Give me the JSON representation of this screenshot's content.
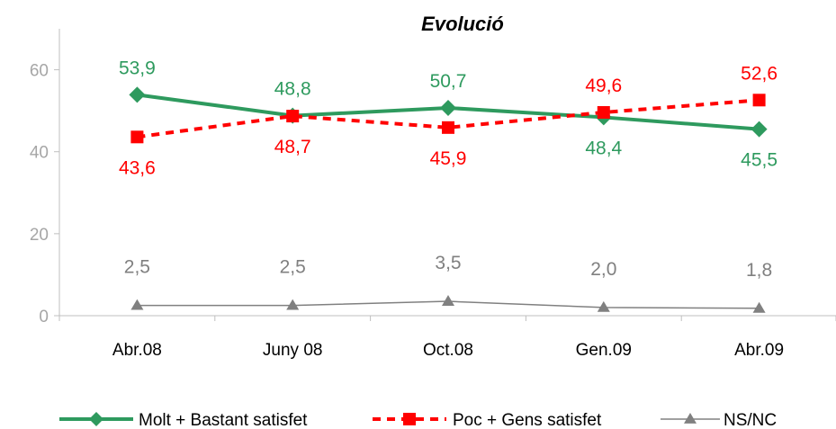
{
  "chart_data": {
    "type": "line",
    "title": "Evolució",
    "categories": [
      "Abr.08",
      "Juny 08",
      "Oct.08",
      "Gen.09",
      "Abr.09"
    ],
    "ylim": [
      0,
      70
    ],
    "yticks": [
      "0",
      "20",
      "40",
      "60"
    ],
    "yticks_values": [
      0,
      20,
      40,
      60
    ],
    "grid": false,
    "legend_position": "bottom",
    "series": [
      {
        "name": "Molt + Bastant satisfet",
        "values": [
          53.9,
          48.8,
          50.7,
          48.4,
          45.5
        ],
        "labels": [
          "53,9",
          "48,8",
          "50,7",
          "48,4",
          "45,5"
        ],
        "label_pos": [
          "above",
          "above",
          "above",
          "below",
          "below"
        ],
        "color": "#2e9a5e",
        "marker": "diamond",
        "line_style": "solid"
      },
      {
        "name": "Poc + Gens satisfet",
        "values": [
          43.6,
          48.7,
          45.9,
          49.6,
          52.6
        ],
        "labels": [
          "43,6",
          "48,7",
          "45,9",
          "49,6",
          "52,6"
        ],
        "label_pos": [
          "below",
          "below",
          "below",
          "above",
          "above"
        ],
        "color": "#ff0000",
        "marker": "square",
        "line_style": "dashed"
      },
      {
        "name": "NS/NC",
        "values": [
          2.5,
          2.5,
          3.5,
          2.0,
          1.8
        ],
        "labels": [
          "2,5",
          "2,5",
          "3,5",
          "2,0",
          "1,8"
        ],
        "label_pos": [
          "above",
          "above",
          "above",
          "above",
          "above"
        ],
        "color": "#808080",
        "marker": "triangle",
        "line_style": "solid"
      }
    ]
  }
}
